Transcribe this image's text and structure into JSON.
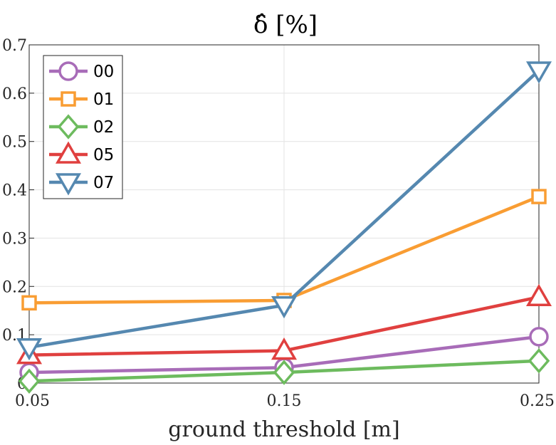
{
  "chart_data": {
    "type": "line",
    "title": "δ̂ [%]",
    "xlabel": "ground threshold [m]",
    "ylabel": "",
    "x": [
      0.05,
      0.15,
      0.25
    ],
    "x_tick_labels": [
      "0.05",
      "0.15",
      "0.25"
    ],
    "ylim": [
      0,
      0.7
    ],
    "y_ticks": [
      0,
      0.1,
      0.2,
      0.3,
      0.4,
      0.5,
      0.6,
      0.7
    ],
    "y_tick_labels": [
      "0",
      "0.1",
      "0.2",
      "0.3",
      "0.4",
      "0.5",
      "0.6",
      "0.7"
    ],
    "grid": true,
    "legend_position": "top-left",
    "series": [
      {
        "name": "00",
        "values": [
          0.022,
          0.032,
          0.096
        ],
        "color": "#a86cb8",
        "marker": "circle"
      },
      {
        "name": "01",
        "values": [
          0.166,
          0.171,
          0.386
        ],
        "color": "#f99d33",
        "marker": "square"
      },
      {
        "name": "02",
        "values": [
          0.004,
          0.022,
          0.046
        ],
        "color": "#6dbb5e",
        "marker": "diamond"
      },
      {
        "name": "05",
        "values": [
          0.058,
          0.067,
          0.178
        ],
        "color": "#e0403f",
        "marker": "triangle-up"
      },
      {
        "name": "07",
        "values": [
          0.074,
          0.161,
          0.647
        ],
        "color": "#5588b0",
        "marker": "triangle-down"
      }
    ]
  }
}
